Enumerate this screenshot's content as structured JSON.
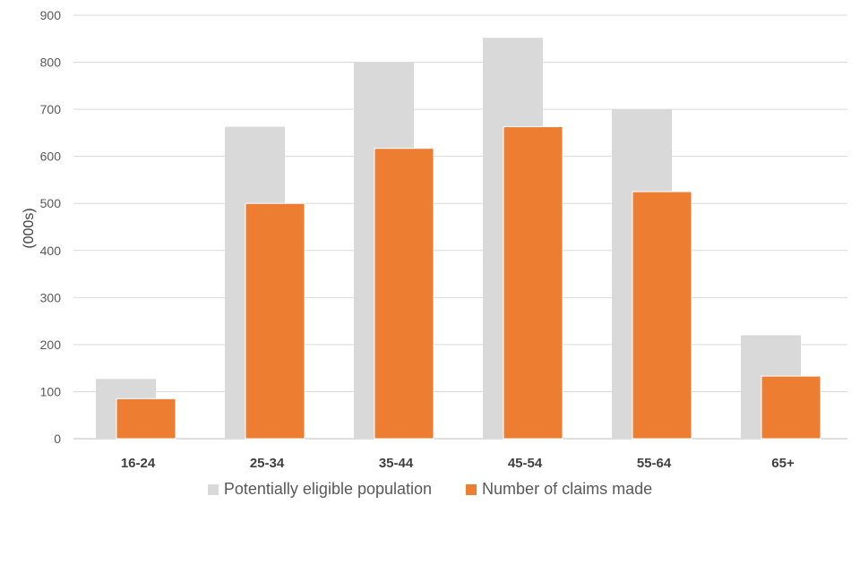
{
  "chart_data": {
    "type": "bar",
    "title": "",
    "xlabel": "",
    "ylabel": "(000s)",
    "ylim": [
      0,
      900
    ],
    "yticks": [
      0,
      100,
      200,
      300,
      400,
      500,
      600,
      700,
      800,
      900
    ],
    "grid": true,
    "legend_position": "bottom",
    "categories": [
      "16-24",
      "25-34",
      "35-44",
      "45-54",
      "55-64",
      "65+"
    ],
    "series": [
      {
        "name": "Potentially eligible population",
        "color": "#d9d9d9",
        "values": [
          127,
          663,
          800,
          852,
          700,
          220
        ]
      },
      {
        "name": "Number of claims made",
        "color": "#ed7d31",
        "values": [
          85,
          500,
          617,
          663,
          525,
          133
        ]
      }
    ]
  }
}
